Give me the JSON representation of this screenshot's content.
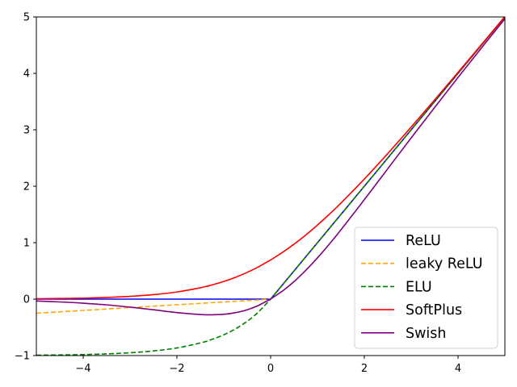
{
  "chart_data": {
    "type": "line",
    "title": "",
    "xlabel": "",
    "ylabel": "",
    "xlim": [
      -5,
      5
    ],
    "ylim": [
      -1,
      5
    ],
    "xticks": [
      -4,
      -2,
      0,
      2,
      4
    ],
    "yticks": [
      -1,
      0,
      1,
      2,
      3,
      4,
      5
    ],
    "xtick_labels": [
      "−4",
      "−2",
      "0",
      "2",
      "4"
    ],
    "ytick_labels": [
      "−1",
      "0",
      "1",
      "2",
      "3",
      "4",
      "5"
    ],
    "grid": false,
    "legend_position": "lower-right",
    "x": [
      -5,
      -4.5,
      -4,
      -3.5,
      -3,
      -2.5,
      -2,
      -1.5,
      -1.25,
      -1,
      -0.75,
      -0.5,
      -0.25,
      0,
      0.25,
      0.5,
      0.75,
      1,
      1.25,
      1.5,
      2,
      2.5,
      3,
      3.5,
      4,
      4.5,
      5
    ],
    "series": [
      {
        "name": "ReLU",
        "color": "#0000ff",
        "dash": "solid",
        "values": [
          0,
          0,
          0,
          0,
          0,
          0,
          0,
          0,
          0,
          0,
          0,
          0,
          0,
          0,
          0.25,
          0.5,
          0.75,
          1,
          1.25,
          1.5,
          2,
          2.5,
          3,
          3.5,
          4,
          4.5,
          5
        ]
      },
      {
        "name": "leaky ReLU",
        "color": "#ffa500",
        "dash": "dashed",
        "values": [
          -0.25,
          -0.225,
          -0.2,
          -0.175,
          -0.15,
          -0.125,
          -0.1,
          -0.075,
          -0.0625,
          -0.05,
          -0.0375,
          -0.025,
          -0.0125,
          0,
          0.25,
          0.5,
          0.75,
          1,
          1.25,
          1.5,
          2,
          2.5,
          3,
          3.5,
          4,
          4.5,
          5
        ]
      },
      {
        "name": "ELU",
        "color": "#008000",
        "dash": "dashed",
        "values": [
          -0.993,
          -0.989,
          -0.982,
          -0.97,
          -0.95,
          -0.918,
          -0.865,
          -0.777,
          -0.713,
          -0.632,
          -0.528,
          -0.393,
          -0.221,
          0,
          0.25,
          0.5,
          0.75,
          1,
          1.25,
          1.5,
          2,
          2.5,
          3,
          3.5,
          4,
          4.5,
          5
        ]
      },
      {
        "name": "SoftPlus",
        "color": "#ff0000",
        "dash": "solid",
        "values": [
          0.007,
          0.011,
          0.018,
          0.03,
          0.049,
          0.079,
          0.127,
          0.201,
          0.252,
          0.313,
          0.386,
          0.474,
          0.576,
          0.693,
          0.826,
          0.974,
          1.136,
          1.313,
          1.502,
          1.701,
          2.127,
          2.579,
          3.049,
          3.53,
          4.018,
          4.511,
          5.007
        ]
      },
      {
        "name": "Swish",
        "color": "#800080",
        "dash": "solid",
        "values": [
          -0.033,
          -0.05,
          -0.072,
          -0.102,
          -0.142,
          -0.189,
          -0.238,
          -0.273,
          -0.278,
          -0.269,
          -0.24,
          -0.189,
          -0.109,
          0,
          0.141,
          0.311,
          0.51,
          0.731,
          0.972,
          1.227,
          1.762,
          2.31,
          2.857,
          3.395,
          3.928,
          4.45,
          4.967
        ]
      }
    ]
  }
}
